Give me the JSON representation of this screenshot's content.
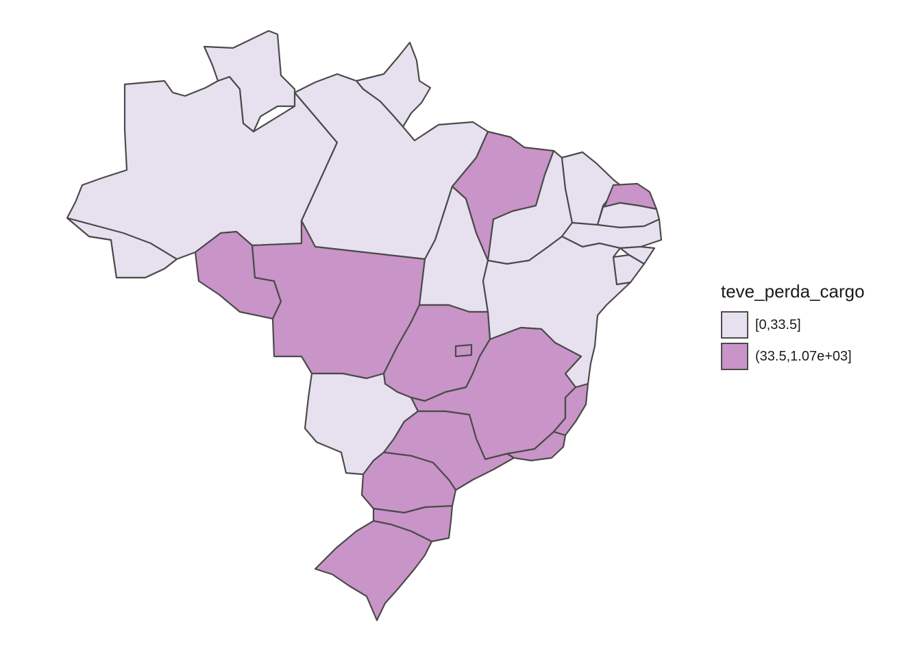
{
  "legend": {
    "title": "teve_perda_cargo",
    "items": [
      {
        "label": "[0,33.5]",
        "color": "#e7e1ef"
      },
      {
        "label": "(33.5,1.07e+03]",
        "color": "#c994c7"
      }
    ]
  },
  "map_data": {
    "type": "choropleth",
    "region": "Brazil",
    "variable": "teve_perda_cargo",
    "stroke_color": "#4a4a4a",
    "states": [
      {
        "name": "AM",
        "class": 0
      },
      {
        "name": "RR",
        "class": 0
      },
      {
        "name": "AP",
        "class": 0
      },
      {
        "name": "PA",
        "class": 0
      },
      {
        "name": "AC",
        "class": 0
      },
      {
        "name": "RO",
        "class": 1
      },
      {
        "name": "MT",
        "class": 1
      },
      {
        "name": "TO",
        "class": 0
      },
      {
        "name": "MA",
        "class": 1
      },
      {
        "name": "PI",
        "class": 0
      },
      {
        "name": "CE",
        "class": 0
      },
      {
        "name": "RN",
        "class": 1
      },
      {
        "name": "PB",
        "class": 0
      },
      {
        "name": "PE",
        "class": 0
      },
      {
        "name": "AL",
        "class": 0
      },
      {
        "name": "SE",
        "class": 0
      },
      {
        "name": "BA",
        "class": 0
      },
      {
        "name": "GO",
        "class": 1
      },
      {
        "name": "DF",
        "class": 1
      },
      {
        "name": "MS",
        "class": 0
      },
      {
        "name": "MG",
        "class": 1
      },
      {
        "name": "ES",
        "class": 1
      },
      {
        "name": "RJ",
        "class": 1
      },
      {
        "name": "SP",
        "class": 1
      },
      {
        "name": "PR",
        "class": 1
      },
      {
        "name": "SC",
        "class": 1
      },
      {
        "name": "RS",
        "class": 1
      }
    ]
  }
}
